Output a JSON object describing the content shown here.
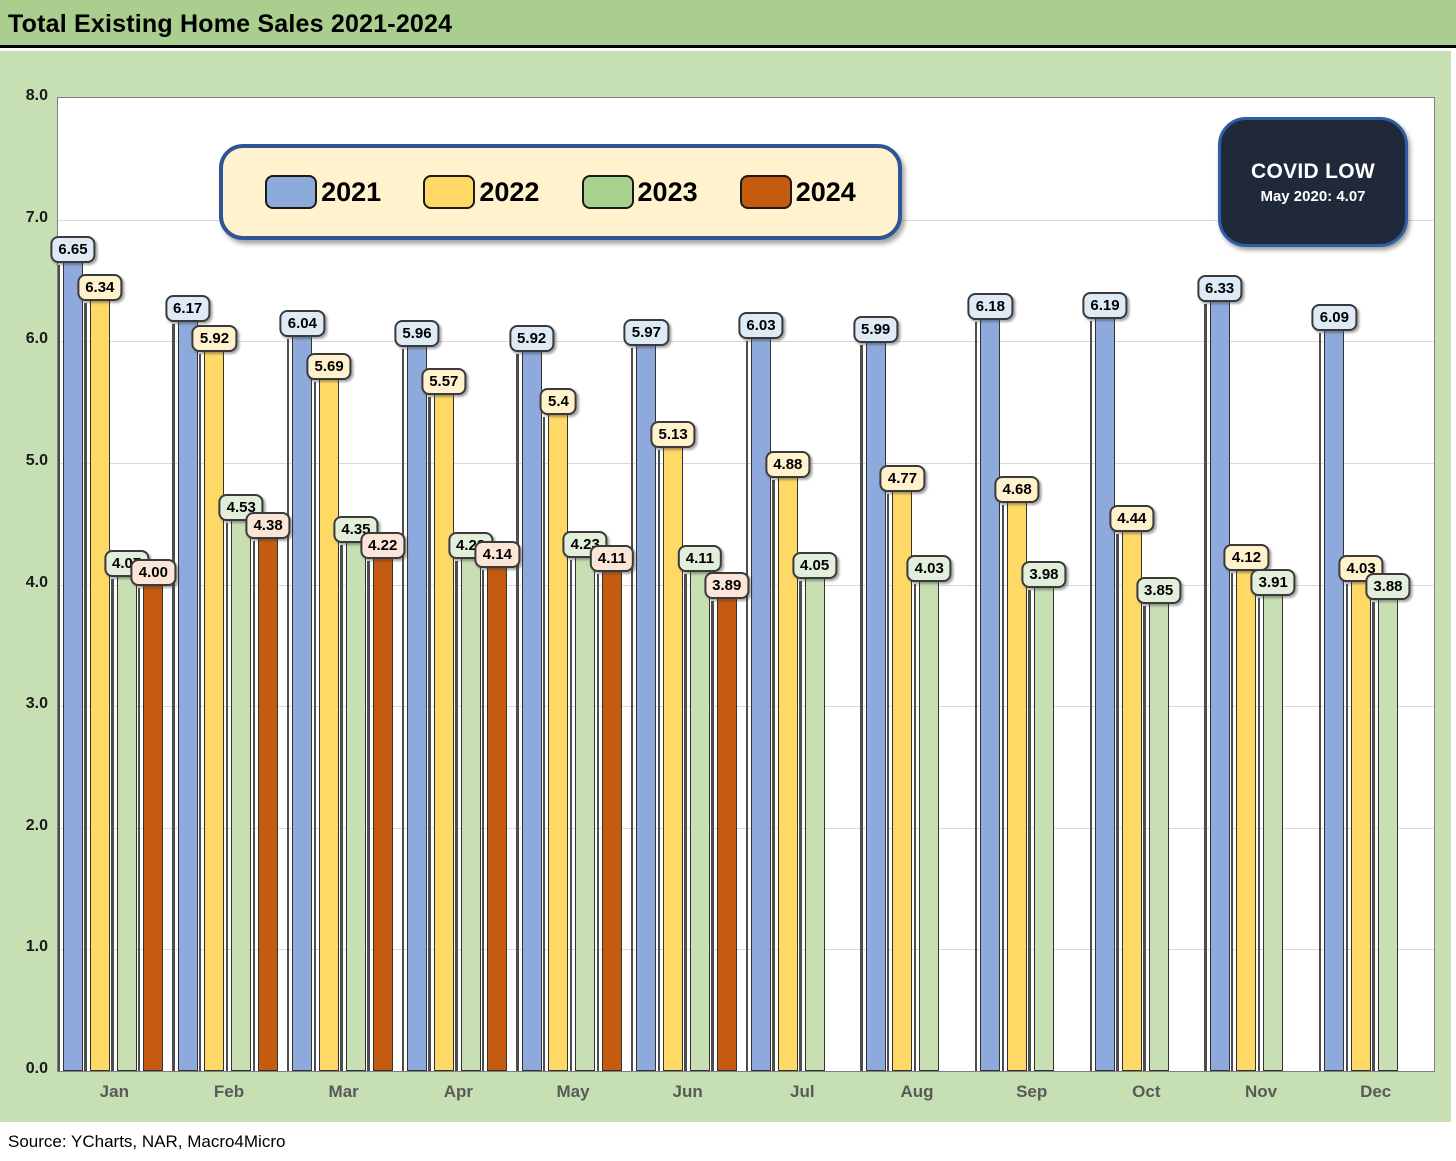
{
  "header": {
    "title": "Total Existing Home Sales 2021-2024"
  },
  "footer": {
    "source": "Source: YCharts, NAR, Macro4Micro"
  },
  "covid_badge": {
    "title": "COVID LOW",
    "subtitle": "May 2020: 4.07"
  },
  "colors": {
    "title_bar_bg": "#a9ce8e",
    "chart_frame_bg": "#c6e0b4",
    "plot_bg": "#ffffff",
    "gridline": "#d9d9d9",
    "legend_bg": "#fff2cc",
    "legend_border": "#2e5696",
    "covid_badge_bg": "#20293a",
    "covid_badge_border": "#2e5fa6",
    "axis_text": "#595959"
  },
  "chart_data": {
    "type": "bar",
    "title": "Total Existing Home Sales 2021-2024",
    "xlabel": "",
    "ylabel": "",
    "ylim": [
      0,
      8
    ],
    "yticks": [
      "8.0",
      "7.0",
      "6.0",
      "5.0",
      "4.0",
      "3.0",
      "2.0",
      "1.0",
      "0.0"
    ],
    "grid": true,
    "legend_position": "top-left-inside",
    "categories": [
      "Jan",
      "Feb",
      "Mar",
      "Apr",
      "May",
      "Jun",
      "Jul",
      "Aug",
      "Sep",
      "Oct",
      "Nov",
      "Dec"
    ],
    "series": [
      {
        "name": "2021",
        "color": "#8ea9db",
        "label_bg": "#deebf7",
        "values": [
          "6.65",
          "6.17",
          "6.04",
          "5.96",
          "5.92",
          "5.97",
          "6.03",
          "5.99",
          "6.18",
          "6.19",
          "6.33",
          "6.09"
        ]
      },
      {
        "name": "2022",
        "color": "#ffd966",
        "label_bg": "#fff2cc",
        "values": [
          "6.34",
          "5.92",
          "5.69",
          "5.57",
          "5.4",
          "5.13",
          "4.88",
          "4.77",
          "4.68",
          "4.44",
          "4.12",
          "4.03"
        ]
      },
      {
        "name": "2023",
        "color": "#c7dfb2",
        "label_bg": "#e2efda",
        "values": [
          "4.07",
          "4.53",
          "4.35",
          "4.22",
          "4.23",
          "4.11",
          "4.05",
          "4.03",
          "3.98",
          "3.85",
          "3.91",
          "3.88"
        ]
      },
      {
        "name": "2024",
        "color": "#c55a11",
        "label_bg": "#fbe5d6",
        "values": [
          "4.00",
          "4.38",
          "4.22",
          "4.14",
          "4.11",
          "3.89",
          null,
          null,
          null,
          null,
          null,
          null
        ]
      }
    ]
  }
}
